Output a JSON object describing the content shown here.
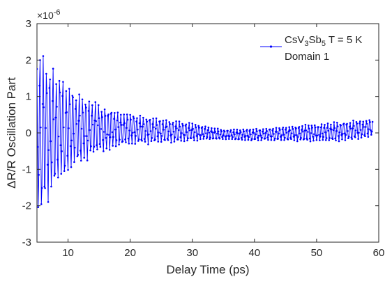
{
  "colors": {
    "series": "#0000ff",
    "axes": "#262626",
    "background": "#ffffff"
  },
  "chart_data": {
    "type": "line",
    "title": "",
    "xlabel": "Delay Time (ps)",
    "ylabel": "ΔR/R Oscillation Part",
    "xlim": [
      5,
      60
    ],
    "ylim": [
      -3,
      3
    ],
    "y_multiplier": "×10",
    "y_multiplier_exp": "-6",
    "x_ticks": [
      10,
      20,
      30,
      40,
      50,
      60
    ],
    "x_tick_labels": [
      "10",
      "20",
      "30",
      "40",
      "50",
      "60"
    ],
    "y_ticks": [
      -3,
      -2,
      -1,
      0,
      1,
      2,
      3
    ],
    "y_tick_labels": [
      "-3",
      "-2",
      "-1",
      "0",
      "1",
      "2",
      "3"
    ],
    "grid": false,
    "legend_position": "top-right",
    "legend": {
      "line1_a": "CsV",
      "line1_sub1": "3",
      "line1_b": "Sb",
      "line1_sub2": "5",
      "line1_c": " T = 5 K",
      "line2": "Domain 1"
    },
    "series": [
      {
        "name": "CsV3Sb5 T = 5 K Domain 1",
        "style": "line-with-dot-markers",
        "x_range": [
          5,
          59
        ],
        "sampling_interval_ps": 0.1,
        "oscillation_period_ps": 0.52,
        "envelope": [
          {
            "x": 5.0,
            "amp": 2.0
          },
          {
            "x": 6.0,
            "amp": 1.95
          },
          {
            "x": 8.0,
            "amp": 1.45
          },
          {
            "x": 10.0,
            "amp": 1.15
          },
          {
            "x": 12.0,
            "amp": 0.85
          },
          {
            "x": 15.0,
            "amp": 0.6
          },
          {
            "x": 18.0,
            "amp": 0.45
          },
          {
            "x": 20.0,
            "amp": 0.4
          },
          {
            "x": 25.0,
            "amp": 0.3
          },
          {
            "x": 30.0,
            "amp": 0.22
          },
          {
            "x": 35.0,
            "amp": 0.12
          },
          {
            "x": 40.0,
            "amp": 0.15
          },
          {
            "x": 45.0,
            "amp": 0.18
          },
          {
            "x": 50.0,
            "amp": 0.22
          },
          {
            "x": 55.0,
            "amp": 0.25
          },
          {
            "x": 59.0,
            "amp": 0.22
          }
        ],
        "baseline": [
          {
            "x": 5.0,
            "y": 0.0
          },
          {
            "x": 10.0,
            "y": 0.1
          },
          {
            "x": 20.0,
            "y": 0.1
          },
          {
            "x": 30.0,
            "y": 0.02
          },
          {
            "x": 35.0,
            "y": -0.05
          },
          {
            "x": 40.0,
            "y": -0.05
          },
          {
            "x": 45.0,
            "y": -0.02
          },
          {
            "x": 50.0,
            "y": 0.0
          },
          {
            "x": 55.0,
            "y": 0.05
          },
          {
            "x": 59.0,
            "y": 0.15
          }
        ]
      }
    ]
  }
}
